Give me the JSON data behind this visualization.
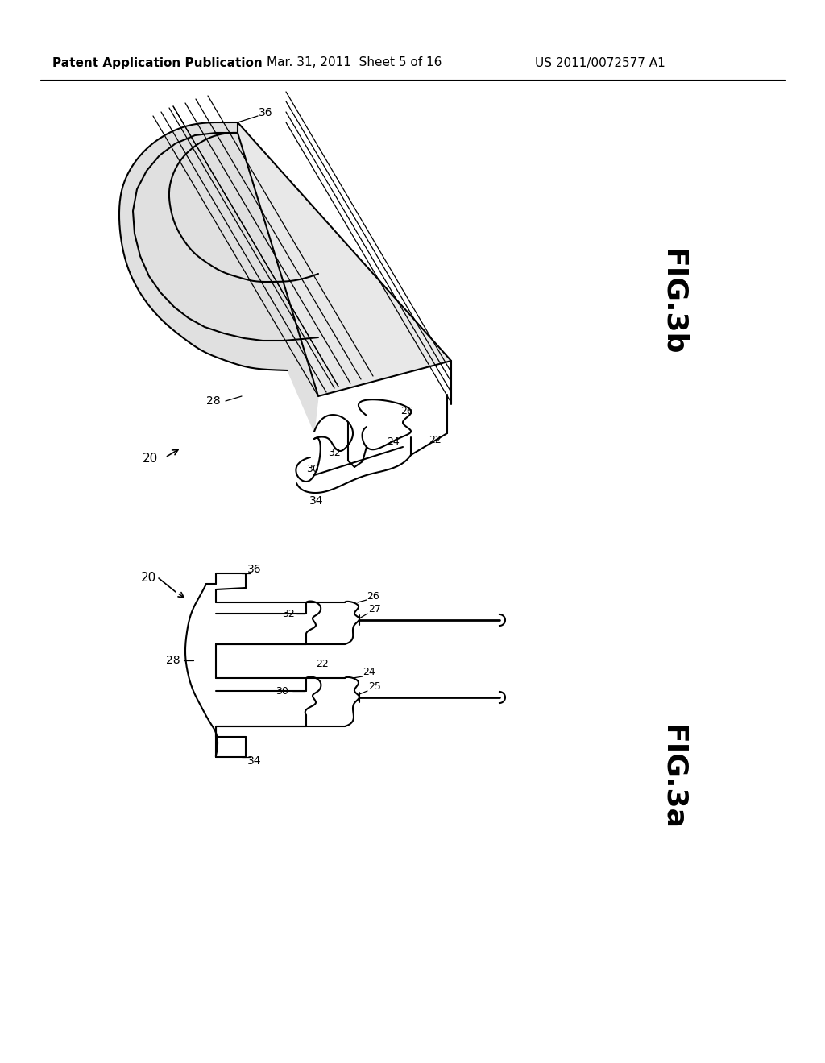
{
  "bg_color": "#ffffff",
  "header_left": "Patent Application Publication",
  "header_center": "Mar. 31, 2011  Sheet 5 of 16",
  "header_right": "US 2011/0072577 A1",
  "fig3b_label": "FIG.3b",
  "fig3a_label": "FIG.3a",
  "lw_main": 1.5,
  "lw_thin": 1.0,
  "lw_leader": 0.9
}
